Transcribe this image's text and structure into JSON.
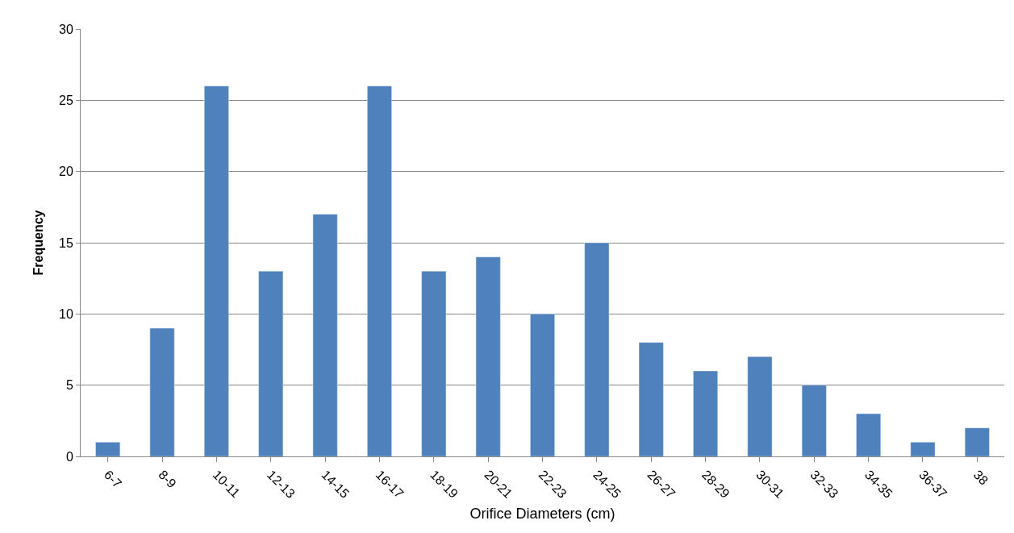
{
  "chart_data": {
    "type": "bar",
    "xlabel": "Orifice Diameters (cm)",
    "ylabel": "Frequency",
    "categories": [
      "6-7",
      "8-9",
      "10-11",
      "12-13",
      "14-15",
      "16-17",
      "18-19",
      "20-21",
      "22-23",
      "24-25",
      "26-27",
      "28-29",
      "30-31",
      "32-33",
      "34-35",
      "36-37",
      "38"
    ],
    "values": [
      1,
      9,
      26,
      13,
      17,
      26,
      13,
      14,
      10,
      15,
      8,
      6,
      7,
      5,
      3,
      1,
      2
    ],
    "color": "#4f81bd",
    "ylim": [
      0,
      30
    ],
    "yticks": [
      0,
      5,
      10,
      15,
      20,
      25,
      30
    ],
    "grid": "y",
    "legend": false
  }
}
